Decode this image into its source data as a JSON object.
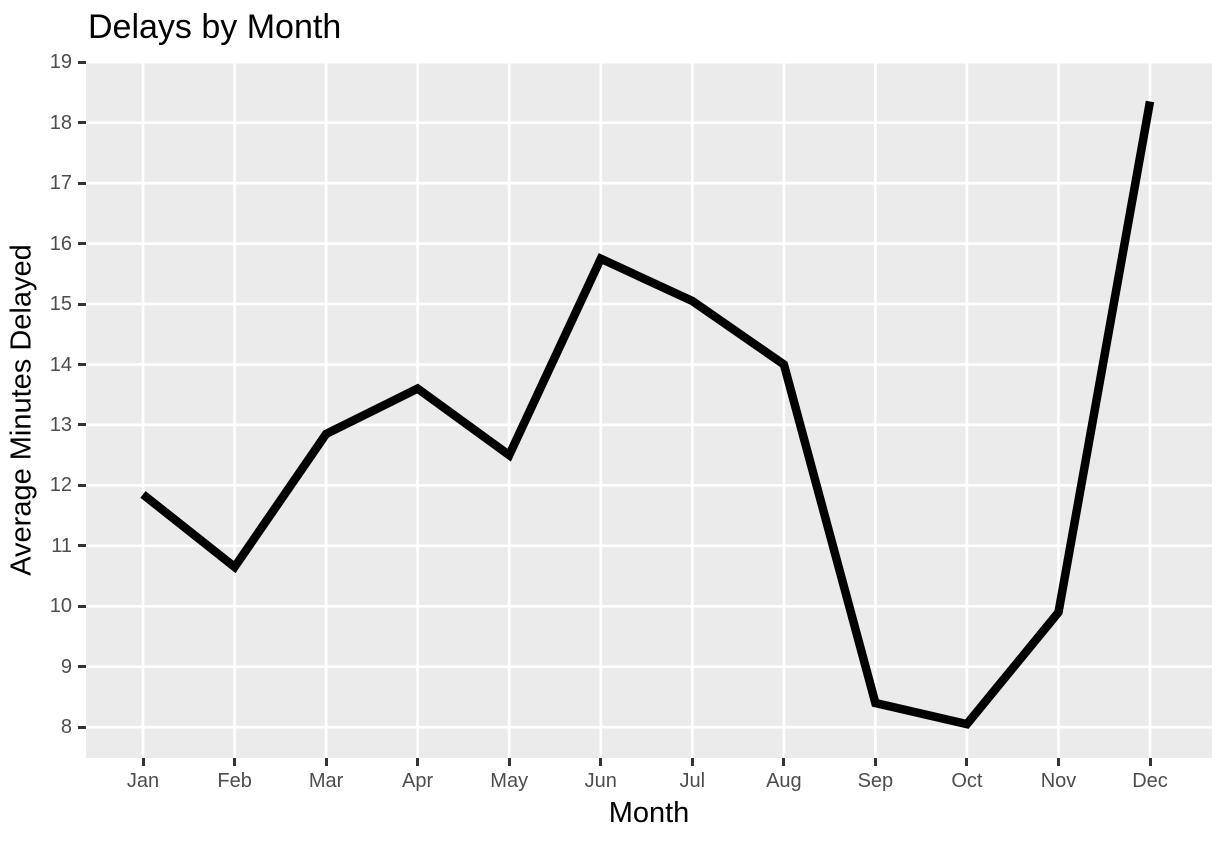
{
  "chart_data": {
    "type": "line",
    "title": "Delays by Month",
    "xlabel": "Month",
    "ylabel": "Average Minutes Delayed",
    "categories": [
      "Jan",
      "Feb",
      "Mar",
      "Apr",
      "May",
      "Jun",
      "Jul",
      "Aug",
      "Sep",
      "Oct",
      "Nov",
      "Dec"
    ],
    "values": [
      11.85,
      10.65,
      12.85,
      13.6,
      12.5,
      15.75,
      15.05,
      14.0,
      8.4,
      8.05,
      9.9,
      18.35
    ],
    "y_breaks": [
      8,
      9,
      10,
      11,
      12,
      13,
      14,
      15,
      16,
      17,
      18,
      19
    ],
    "ylim": [
      7.49,
      19.02
    ],
    "grid": "major-only",
    "legend_position": "none",
    "style": {
      "panel_bg": "#EBEBEB",
      "grid_color": "#FFFFFF",
      "line_color": "#000000",
      "line_width": 8.5,
      "tick_mark_color": "#333333",
      "tick_label_color": "#4D4D4D",
      "title_color": "#000000",
      "page_bg": "#FFFFFF"
    }
  }
}
